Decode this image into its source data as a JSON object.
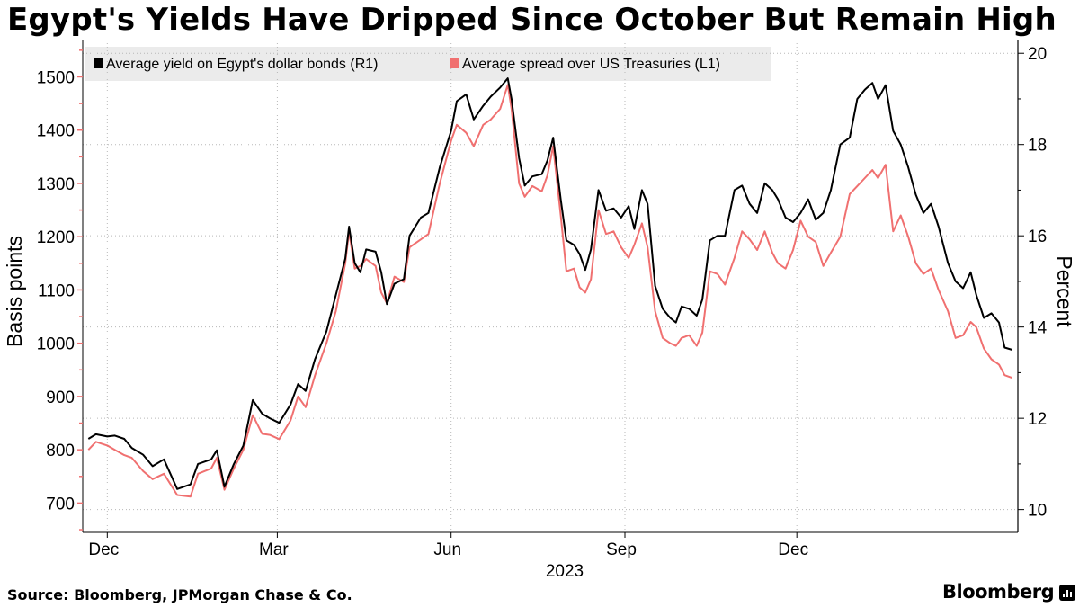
{
  "title": "Egypt's Yields Have Dripped Since October But Remain High",
  "source": "Source: Bloomberg, JPMorgan Chase & Co.",
  "brand": "Bloomberg",
  "brand_icon": "bloomberg-terminal-icon",
  "chart_data": {
    "type": "line",
    "x_ticks": [
      "Dec",
      "Mar",
      "Jun",
      "Sep",
      "Dec"
    ],
    "x_year_label": "2023",
    "left_axis": {
      "label": "Basis points",
      "ticks": [
        700,
        800,
        900,
        1000,
        1100,
        1200,
        1300,
        1400,
        1500
      ],
      "range": [
        645,
        1570
      ]
    },
    "right_axis": {
      "label": "Percent",
      "ticks": [
        10,
        12,
        14,
        16,
        18,
        20
      ],
      "range": [
        9.5,
        20.3
      ]
    },
    "grid": "dotted",
    "legend_position": "top-left",
    "colors": {
      "yield": "#000000",
      "spread": "#f07070"
    },
    "series": [
      {
        "name": "Average yield on Egypt's dollar bonds (R1)",
        "axis": "right",
        "points": [
          [
            "2022-11-21",
            11.55
          ],
          [
            "2022-11-25",
            11.65
          ],
          [
            "2022-12-01",
            11.6
          ],
          [
            "2022-12-05",
            11.62
          ],
          [
            "2022-12-10",
            11.55
          ],
          [
            "2022-12-14",
            11.35
          ],
          [
            "2022-12-20",
            11.2
          ],
          [
            "2022-12-25",
            10.95
          ],
          [
            "2022-12-31",
            11.1
          ],
          [
            "2023-01-07",
            10.45
          ],
          [
            "2023-01-14",
            10.55
          ],
          [
            "2023-01-18",
            11.0
          ],
          [
            "2023-01-25",
            11.1
          ],
          [
            "2023-01-28",
            11.3
          ],
          [
            "2023-02-01",
            10.5
          ],
          [
            "2023-02-06",
            11.0
          ],
          [
            "2023-02-11",
            11.4
          ],
          [
            "2023-02-16",
            12.4
          ],
          [
            "2023-02-21",
            12.1
          ],
          [
            "2023-02-25",
            12.0
          ],
          [
            "2023-03-02",
            11.9
          ],
          [
            "2023-03-08",
            12.3
          ],
          [
            "2023-03-12",
            12.75
          ],
          [
            "2023-03-16",
            12.6
          ],
          [
            "2023-03-21",
            13.3
          ],
          [
            "2023-03-27",
            13.9
          ],
          [
            "2023-04-01",
            14.7
          ],
          [
            "2023-04-06",
            15.5
          ],
          [
            "2023-04-08",
            16.2
          ],
          [
            "2023-04-11",
            15.4
          ],
          [
            "2023-04-14",
            15.2
          ],
          [
            "2023-04-17",
            15.7
          ],
          [
            "2023-04-22",
            15.65
          ],
          [
            "2023-04-25",
            15.2
          ],
          [
            "2023-04-28",
            14.5
          ],
          [
            "2023-05-02",
            14.95
          ],
          [
            "2023-05-07",
            15.05
          ],
          [
            "2023-05-10",
            16.0
          ],
          [
            "2023-05-16",
            16.4
          ],
          [
            "2023-05-20",
            16.5
          ],
          [
            "2023-05-26",
            17.5
          ],
          [
            "2023-06-01",
            18.3
          ],
          [
            "2023-06-04",
            18.95
          ],
          [
            "2023-06-09",
            19.1
          ],
          [
            "2023-06-13",
            18.55
          ],
          [
            "2023-06-18",
            18.85
          ],
          [
            "2023-06-22",
            19.05
          ],
          [
            "2023-06-27",
            19.25
          ],
          [
            "2023-07-01",
            19.45
          ],
          [
            "2023-07-03",
            19.0
          ],
          [
            "2023-07-07",
            17.7
          ],
          [
            "2023-07-10",
            17.1
          ],
          [
            "2023-07-14",
            17.3
          ],
          [
            "2023-07-19",
            17.35
          ],
          [
            "2023-07-22",
            17.65
          ],
          [
            "2023-07-25",
            18.15
          ],
          [
            "2023-07-29",
            16.8
          ],
          [
            "2023-08-01",
            15.9
          ],
          [
            "2023-08-05",
            15.8
          ],
          [
            "2023-08-08",
            15.6
          ],
          [
            "2023-08-11",
            15.25
          ],
          [
            "2023-08-14",
            15.7
          ],
          [
            "2023-08-18",
            17.0
          ],
          [
            "2023-08-22",
            16.55
          ],
          [
            "2023-08-26",
            16.6
          ],
          [
            "2023-08-30",
            16.4
          ],
          [
            "2023-09-03",
            16.65
          ],
          [
            "2023-09-06",
            16.15
          ],
          [
            "2023-09-10",
            17.0
          ],
          [
            "2023-09-13",
            16.7
          ],
          [
            "2023-09-17",
            14.9
          ],
          [
            "2023-09-21",
            14.4
          ],
          [
            "2023-09-25",
            14.2
          ],
          [
            "2023-09-28",
            14.1
          ],
          [
            "2023-10-01",
            14.45
          ],
          [
            "2023-10-05",
            14.4
          ],
          [
            "2023-10-09",
            14.25
          ],
          [
            "2023-10-12",
            14.6
          ],
          [
            "2023-10-16",
            15.9
          ],
          [
            "2023-10-20",
            16.0
          ],
          [
            "2023-10-24",
            16.0
          ],
          [
            "2023-10-29",
            17.0
          ],
          [
            "2023-11-02",
            17.1
          ],
          [
            "2023-11-06",
            16.7
          ],
          [
            "2023-11-10",
            16.5
          ],
          [
            "2023-11-14",
            17.15
          ],
          [
            "2023-11-18",
            17.0
          ],
          [
            "2023-11-21",
            16.8
          ],
          [
            "2023-11-25",
            16.4
          ],
          [
            "2023-11-29",
            16.3
          ],
          [
            "2023-12-03",
            16.5
          ],
          [
            "2023-12-07",
            16.8
          ],
          [
            "2023-12-11",
            16.35
          ],
          [
            "2023-12-15",
            16.5
          ],
          [
            "2023-12-19",
            17.0
          ],
          [
            "2023-12-24",
            18.0
          ],
          [
            "2023-12-29",
            18.15
          ],
          [
            "2024-01-02",
            19.0
          ],
          [
            "2024-01-06",
            19.2
          ],
          [
            "2024-01-10",
            19.35
          ],
          [
            "2024-01-13",
            19.0
          ],
          [
            "2024-01-17",
            19.3
          ],
          [
            "2024-01-21",
            18.3
          ],
          [
            "2024-01-25",
            18.0
          ],
          [
            "2024-01-29",
            17.5
          ],
          [
            "2024-02-02",
            16.9
          ],
          [
            "2024-02-06",
            16.5
          ],
          [
            "2024-02-10",
            16.7
          ],
          [
            "2024-02-14",
            16.2
          ],
          [
            "2024-02-19",
            15.4
          ],
          [
            "2024-02-23",
            15.0
          ],
          [
            "2024-02-27",
            14.85
          ],
          [
            "2024-03-02",
            15.2
          ],
          [
            "2024-03-05",
            14.7
          ],
          [
            "2024-03-09",
            14.2
          ],
          [
            "2024-03-13",
            14.3
          ],
          [
            "2024-03-17",
            14.1
          ],
          [
            "2024-03-20",
            13.55
          ],
          [
            "2024-03-24",
            13.5
          ]
        ]
      },
      {
        "name": "Average spread over US Treasuries (L1)",
        "axis": "left",
        "points": [
          [
            "2022-11-21",
            800
          ],
          [
            "2022-11-25",
            815
          ],
          [
            "2022-12-01",
            808
          ],
          [
            "2022-12-05",
            800
          ],
          [
            "2022-12-10",
            790
          ],
          [
            "2022-12-14",
            785
          ],
          [
            "2022-12-20",
            760
          ],
          [
            "2022-12-25",
            745
          ],
          [
            "2022-12-31",
            755
          ],
          [
            "2023-01-07",
            715
          ],
          [
            "2023-01-14",
            712
          ],
          [
            "2023-01-18",
            755
          ],
          [
            "2023-01-25",
            765
          ],
          [
            "2023-01-28",
            785
          ],
          [
            "2023-02-01",
            725
          ],
          [
            "2023-02-06",
            765
          ],
          [
            "2023-02-11",
            800
          ],
          [
            "2023-02-16",
            865
          ],
          [
            "2023-02-21",
            830
          ],
          [
            "2023-02-25",
            828
          ],
          [
            "2023-03-02",
            820
          ],
          [
            "2023-03-08",
            855
          ],
          [
            "2023-03-12",
            900
          ],
          [
            "2023-03-16",
            880
          ],
          [
            "2023-03-21",
            940
          ],
          [
            "2023-03-27",
            1000
          ],
          [
            "2023-04-01",
            1060
          ],
          [
            "2023-04-06",
            1150
          ],
          [
            "2023-04-08",
            1210
          ],
          [
            "2023-04-11",
            1140
          ],
          [
            "2023-04-14",
            1145
          ],
          [
            "2023-04-17",
            1158
          ],
          [
            "2023-04-22",
            1145
          ],
          [
            "2023-04-25",
            1095
          ],
          [
            "2023-04-28",
            1075
          ],
          [
            "2023-05-02",
            1125
          ],
          [
            "2023-05-07",
            1115
          ],
          [
            "2023-05-10",
            1180
          ],
          [
            "2023-05-16",
            1195
          ],
          [
            "2023-05-20",
            1205
          ],
          [
            "2023-05-26",
            1300
          ],
          [
            "2023-06-01",
            1380
          ],
          [
            "2023-06-04",
            1410
          ],
          [
            "2023-06-09",
            1395
          ],
          [
            "2023-06-13",
            1370
          ],
          [
            "2023-06-18",
            1410
          ],
          [
            "2023-06-22",
            1420
          ],
          [
            "2023-06-27",
            1440
          ],
          [
            "2023-07-01",
            1485
          ],
          [
            "2023-07-03",
            1440
          ],
          [
            "2023-07-07",
            1300
          ],
          [
            "2023-07-10",
            1275
          ],
          [
            "2023-07-14",
            1295
          ],
          [
            "2023-07-19",
            1285
          ],
          [
            "2023-07-22",
            1315
          ],
          [
            "2023-07-25",
            1370
          ],
          [
            "2023-07-29",
            1240
          ],
          [
            "2023-08-01",
            1135
          ],
          [
            "2023-08-05",
            1140
          ],
          [
            "2023-08-08",
            1105
          ],
          [
            "2023-08-11",
            1095
          ],
          [
            "2023-08-14",
            1120
          ],
          [
            "2023-08-18",
            1250
          ],
          [
            "2023-08-22",
            1205
          ],
          [
            "2023-08-26",
            1210
          ],
          [
            "2023-08-30",
            1180
          ],
          [
            "2023-09-03",
            1160
          ],
          [
            "2023-09-06",
            1185
          ],
          [
            "2023-09-10",
            1225
          ],
          [
            "2023-09-13",
            1180
          ],
          [
            "2023-09-17",
            1060
          ],
          [
            "2023-09-21",
            1010
          ],
          [
            "2023-09-25",
            1000
          ],
          [
            "2023-09-28",
            995
          ],
          [
            "2023-10-01",
            1010
          ],
          [
            "2023-10-05",
            1015
          ],
          [
            "2023-10-09",
            995
          ],
          [
            "2023-10-12",
            1020
          ],
          [
            "2023-10-16",
            1135
          ],
          [
            "2023-10-20",
            1130
          ],
          [
            "2023-10-24",
            1110
          ],
          [
            "2023-10-29",
            1160
          ],
          [
            "2023-11-02",
            1210
          ],
          [
            "2023-11-06",
            1195
          ],
          [
            "2023-11-10",
            1175
          ],
          [
            "2023-11-14",
            1210
          ],
          [
            "2023-11-18",
            1170
          ],
          [
            "2023-11-21",
            1150
          ],
          [
            "2023-11-25",
            1140
          ],
          [
            "2023-11-29",
            1175
          ],
          [
            "2023-12-03",
            1230
          ],
          [
            "2023-12-07",
            1200
          ],
          [
            "2023-12-11",
            1190
          ],
          [
            "2023-12-15",
            1145
          ],
          [
            "2023-12-19",
            1170
          ],
          [
            "2023-12-24",
            1200
          ],
          [
            "2023-12-29",
            1280
          ],
          [
            "2024-01-02",
            1295
          ],
          [
            "2024-01-06",
            1310
          ],
          [
            "2024-01-10",
            1325
          ],
          [
            "2024-01-13",
            1310
          ],
          [
            "2024-01-17",
            1335
          ],
          [
            "2024-01-21",
            1210
          ],
          [
            "2024-01-25",
            1240
          ],
          [
            "2024-01-29",
            1200
          ],
          [
            "2024-02-02",
            1150
          ],
          [
            "2024-02-06",
            1130
          ],
          [
            "2024-02-10",
            1140
          ],
          [
            "2024-02-14",
            1100
          ],
          [
            "2024-02-19",
            1060
          ],
          [
            "2024-02-23",
            1010
          ],
          [
            "2024-02-27",
            1015
          ],
          [
            "2024-03-02",
            1040
          ],
          [
            "2024-03-05",
            1030
          ],
          [
            "2024-03-09",
            990
          ],
          [
            "2024-03-13",
            970
          ],
          [
            "2024-03-17",
            960
          ],
          [
            "2024-03-20",
            940
          ],
          [
            "2024-03-24",
            935
          ]
        ]
      }
    ]
  }
}
